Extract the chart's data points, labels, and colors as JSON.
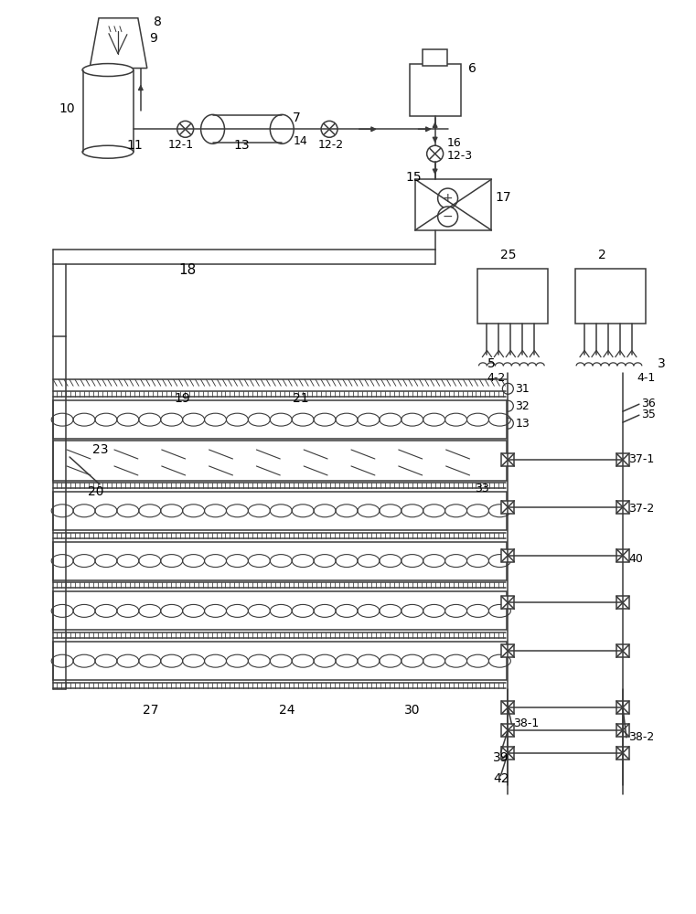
{
  "bg": "#ffffff",
  "lc": "#3a3a3a",
  "lw": 1.1,
  "fw": 7.61,
  "fh": 10.0
}
